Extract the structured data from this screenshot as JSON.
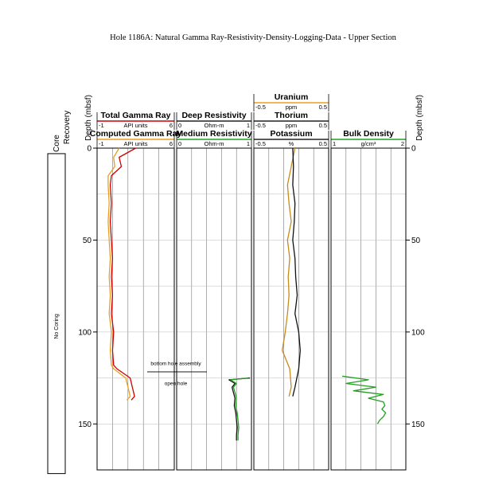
{
  "chart_data": {
    "type": "line",
    "title": "Hole 1186A: Natural Gamma Ray-Resistivity-Density-Logging-Data - Upper Section",
    "ylabel": "Depth (mbsf)",
    "ylim": [
      0,
      175
    ],
    "yticks": [
      0,
      50,
      100,
      150
    ],
    "grid": true,
    "core_column": {
      "header_core": "Core",
      "header_recovery": "Recovery",
      "label": "No Coring",
      "depth_range": [
        3,
        177
      ]
    },
    "tracks": [
      {
        "id": "gamma",
        "xlim": [
          -1,
          6
        ],
        "headers": [
          {
            "name": "Total Gamma Ray",
            "min": "-1",
            "unit": "API units",
            "max": "6",
            "color": "#cc0000"
          },
          {
            "name": "Computed Gamma Ray",
            "min": "-1",
            "unit": "API units",
            "max": "6",
            "color": "#e8a020"
          }
        ],
        "series": [
          {
            "name": "Total Gamma Ray",
            "color": "#cc0000",
            "depth": [
              0,
              5,
              10,
              15,
              20,
              30,
              40,
              50,
              60,
              70,
              80,
              90,
              100,
              110,
              118,
              120,
              125,
              130,
              135,
              137
            ],
            "values": [
              2.5,
              1.0,
              1.2,
              0.3,
              0.2,
              0.3,
              0.2,
              0.3,
              0.4,
              0.3,
              0.4,
              0.3,
              0.5,
              0.4,
              0.5,
              0.8,
              2.0,
              2.2,
              2.4,
              2.1
            ]
          },
          {
            "name": "Computed Gamma Ray",
            "color": "#e8a020",
            "depth": [
              0,
              5,
              10,
              15,
              20,
              30,
              40,
              50,
              60,
              70,
              80,
              90,
              100,
              110,
              118,
              120,
              125,
              130,
              135,
              137
            ],
            "values": [
              1.0,
              0.5,
              0.6,
              0.0,
              0.0,
              0.1,
              0.0,
              0.1,
              0.2,
              0.1,
              0.2,
              0.1,
              0.3,
              0.2,
              0.3,
              0.5,
              1.6,
              1.8,
              2.0,
              1.7
            ]
          }
        ]
      },
      {
        "id": "resistivity",
        "xlim": [
          0,
          1
        ],
        "headers": [
          {
            "name": "Deep Resistivity",
            "min": "0",
            "unit": "Ohm-m",
            "max": "1",
            "color": "#222222"
          },
          {
            "name": "Medium Resistivity",
            "min": "0",
            "unit": "Ohm-m",
            "max": "1",
            "color": "#22a022"
          }
        ],
        "series": [
          {
            "name": "Deep Resistivity",
            "color": "#111111",
            "depth": [
              125,
              126,
              128,
              130,
              133,
              136,
              140,
              144,
              148,
              152,
              156,
              159
            ],
            "values": [
              0.98,
              0.7,
              0.78,
              0.74,
              0.76,
              0.78,
              0.77,
              0.79,
              0.8,
              0.81,
              0.8,
              0.8
            ]
          },
          {
            "name": "Medium Resistivity",
            "color": "#22a022",
            "depth": [
              125,
              126,
              128,
              130,
              133,
              136,
              140,
              144,
              148,
              152,
              156,
              159
            ],
            "values": [
              0.95,
              0.72,
              0.8,
              0.76,
              0.78,
              0.8,
              0.79,
              0.81,
              0.82,
              0.83,
              0.82,
              0.82
            ]
          }
        ],
        "annotations": [
          "bottom hole assembly",
          "open hole"
        ]
      },
      {
        "id": "spectral",
        "xlim": [
          -0.5,
          0.5
        ],
        "headers": [
          {
            "name": "Uranium",
            "min": "-0.5",
            "unit": "ppm",
            "max": "0.5",
            "color": "#e8a020"
          },
          {
            "name": "Thorium",
            "min": "-0.5",
            "unit": "ppm",
            "max": "0.5",
            "color": "#222222"
          },
          {
            "name": "Potassium",
            "min": "-0.5",
            "unit": "%",
            "max": "0.5",
            "color": "#222222"
          }
        ],
        "series": [
          {
            "name": "Uranium",
            "color": "#c88a1a",
            "depth": [
              0,
              10,
              20,
              30,
              40,
              50,
              60,
              70,
              80,
              90,
              100,
              110,
              120,
              130,
              135
            ],
            "values": [
              0.05,
              0.0,
              -0.05,
              -0.03,
              0.0,
              -0.05,
              -0.02,
              -0.04,
              -0.03,
              -0.05,
              -0.08,
              -0.12,
              -0.02,
              0.0,
              -0.03
            ]
          },
          {
            "name": "Thorium",
            "color": "#111111",
            "depth": [
              0,
              10,
              20,
              30,
              40,
              50,
              60,
              70,
              80,
              90,
              100,
              110,
              120,
              130,
              135
            ],
            "values": [
              0.02,
              0.03,
              0.02,
              0.05,
              0.04,
              0.02,
              0.05,
              0.06,
              0.08,
              0.05,
              0.1,
              0.12,
              0.1,
              0.05,
              0.02
            ]
          }
        ]
      },
      {
        "id": "density",
        "xlim": [
          1,
          2
        ],
        "headers": [
          {
            "name": "Bulk Density",
            "min": "1",
            "unit": "g/cm³",
            "max": "2",
            "color": "#22a022"
          }
        ],
        "series": [
          {
            "name": "Bulk Density",
            "color": "#22a022",
            "depth": [
              124,
              126,
              128,
              130,
              132,
              134,
              136,
              138,
              140,
              142,
              144,
              146,
              148,
              150
            ],
            "values": [
              1.15,
              1.5,
              1.2,
              1.6,
              1.3,
              1.7,
              1.5,
              1.7,
              1.72,
              1.68,
              1.73,
              1.7,
              1.65,
              1.62
            ]
          }
        ]
      }
    ]
  }
}
